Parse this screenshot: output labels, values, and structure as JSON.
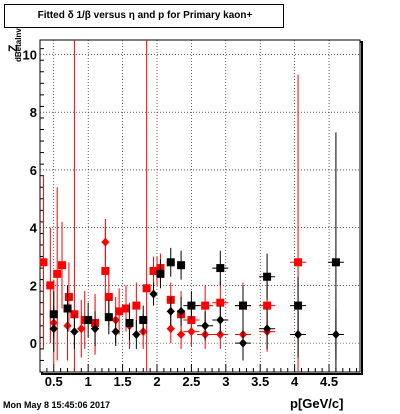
{
  "chart_data": {
    "type": "scatter",
    "title": "Fitted δ 1/β versus η and p for Primary kaon+",
    "xlabel": "p[GeV/c]",
    "ylabel_main": "Z",
    "ylabel_sub": "dBetaInv",
    "xlim": [
      0.3,
      4.95
    ],
    "ylim": [
      -1.0,
      10.5
    ],
    "xticks": [
      0.5,
      1,
      1.5,
      2,
      2.5,
      3,
      3.5,
      4,
      4.5
    ],
    "xtick_labels": [
      "0.5",
      "1",
      "1.5",
      "2",
      "2.5",
      "3",
      "3.5",
      "4",
      "4.5"
    ],
    "yticks": [
      0,
      2,
      4,
      6,
      8,
      10
    ],
    "ytick_labels": [
      "0",
      "2",
      "4",
      "6",
      "8",
      "10"
    ],
    "grid": true,
    "series": [
      {
        "marker": "square",
        "color": "#ff0000",
        "points": [
          {
            "x": 0.35,
            "y": 2.8,
            "err": 3.0
          },
          {
            "x": 0.45,
            "y": 2.0,
            "err": 2.0
          },
          {
            "x": 0.55,
            "y": 2.4,
            "err": 3.0
          },
          {
            "x": 0.62,
            "y": 2.7,
            "err": 1.5
          },
          {
            "x": 0.72,
            "y": 1.6,
            "err": 1.2
          },
          {
            "x": 0.8,
            "y": 1.0,
            "err": 10.0
          },
          {
            "x": 0.95,
            "y": 0.8,
            "err": 1.0
          },
          {
            "x": 1.1,
            "y": 0.7,
            "err": 1.0
          },
          {
            "x": 1.25,
            "y": 2.5,
            "err": 1.5
          },
          {
            "x": 1.3,
            "y": 1.6,
            "err": 1.0
          },
          {
            "x": 1.45,
            "y": 1.1,
            "err": 0.8
          },
          {
            "x": 1.55,
            "y": 1.2,
            "err": 0.8
          },
          {
            "x": 1.7,
            "y": 1.3,
            "err": 0.8
          },
          {
            "x": 1.85,
            "y": 1.9,
            "err": 10.0
          },
          {
            "x": 1.95,
            "y": 2.5,
            "err": 0.5
          },
          {
            "x": 2.05,
            "y": 2.6,
            "err": 0.5
          },
          {
            "x": 2.2,
            "y": 1.5,
            "err": 0.6
          },
          {
            "x": 2.35,
            "y": 1.0,
            "err": 0.8
          },
          {
            "x": 2.5,
            "y": 0.8,
            "err": 0.6
          },
          {
            "x": 2.7,
            "y": 1.3,
            "err": 0.7
          },
          {
            "x": 2.92,
            "y": 1.4,
            "err": 0.7
          },
          {
            "x": 3.25,
            "y": 1.3,
            "err": 0.8
          },
          {
            "x": 3.6,
            "y": 1.3,
            "err": 1.0
          },
          {
            "x": 4.05,
            "y": 2.8,
            "err": 6.5
          }
        ]
      },
      {
        "marker": "diamond",
        "color": "#ff0000",
        "points": [
          {
            "x": 0.5,
            "y": 0.7,
            "err": 1.5
          },
          {
            "x": 0.7,
            "y": 0.6,
            "err": 1.2
          },
          {
            "x": 0.9,
            "y": 0.5,
            "err": 1.0
          },
          {
            "x": 1.1,
            "y": 0.6,
            "err": 1.0
          },
          {
            "x": 1.25,
            "y": 3.5,
            "err": 0.8
          },
          {
            "x": 1.4,
            "y": 0.8,
            "err": 0.8
          },
          {
            "x": 1.6,
            "y": 0.6,
            "err": 0.8
          },
          {
            "x": 1.8,
            "y": 0.4,
            "err": 0.6
          },
          {
            "x": 2.0,
            "y": 2.5,
            "err": 0.5
          },
          {
            "x": 2.2,
            "y": 0.5,
            "err": 0.5
          },
          {
            "x": 2.35,
            "y": 0.3,
            "err": 0.5
          },
          {
            "x": 2.5,
            "y": 0.4,
            "err": 0.5
          },
          {
            "x": 2.7,
            "y": 0.3,
            "err": 0.5
          },
          {
            "x": 2.92,
            "y": 0.3,
            "err": 0.5
          },
          {
            "x": 3.25,
            "y": 0.3,
            "err": 0.6
          },
          {
            "x": 3.6,
            "y": 0.4,
            "err": 0.7
          },
          {
            "x": 4.05,
            "y": 0.3,
            "err": 0.8
          }
        ]
      },
      {
        "marker": "square",
        "color": "#000000",
        "points": [
          {
            "x": 0.5,
            "y": 1.0,
            "err": 0.8
          },
          {
            "x": 0.7,
            "y": 1.2,
            "err": 0.8
          },
          {
            "x": 1.0,
            "y": 0.8,
            "err": 0.6
          },
          {
            "x": 1.3,
            "y": 0.9,
            "err": 0.6
          },
          {
            "x": 1.6,
            "y": 0.7,
            "err": 0.6
          },
          {
            "x": 1.8,
            "y": 0.8,
            "err": 0.5
          },
          {
            "x": 2.05,
            "y": 2.4,
            "err": 0.5
          },
          {
            "x": 2.2,
            "y": 2.8,
            "err": 0.5
          },
          {
            "x": 2.35,
            "y": 2.7,
            "err": 0.5
          },
          {
            "x": 2.5,
            "y": 1.3,
            "err": 0.5
          },
          {
            "x": 2.92,
            "y": 2.6,
            "err": 0.6
          },
          {
            "x": 3.25,
            "y": 1.3,
            "err": 0.7
          },
          {
            "x": 3.6,
            "y": 2.3,
            "err": 0.8
          },
          {
            "x": 4.05,
            "y": 1.3,
            "err": 1.0
          },
          {
            "x": 4.6,
            "y": 2.8,
            "err": 4.5
          }
        ]
      },
      {
        "marker": "diamond",
        "color": "#000000",
        "points": [
          {
            "x": 0.5,
            "y": 0.5,
            "err": 0.8
          },
          {
            "x": 0.8,
            "y": 0.4,
            "err": 0.6
          },
          {
            "x": 1.1,
            "y": 0.5,
            "err": 0.6
          },
          {
            "x": 1.4,
            "y": 0.4,
            "err": 0.5
          },
          {
            "x": 1.7,
            "y": 0.3,
            "err": 0.5
          },
          {
            "x": 1.95,
            "y": 1.7,
            "err": 0.4
          },
          {
            "x": 2.2,
            "y": 1.1,
            "err": 0.5
          },
          {
            "x": 2.35,
            "y": 1.1,
            "err": 0.5
          },
          {
            "x": 2.7,
            "y": 0.6,
            "err": 0.5
          },
          {
            "x": 2.92,
            "y": 0.8,
            "err": 0.5
          },
          {
            "x": 3.25,
            "y": 0.0,
            "err": 0.6
          },
          {
            "x": 3.6,
            "y": 0.5,
            "err": 0.7
          },
          {
            "x": 4.05,
            "y": 0.3,
            "err": 0.8
          },
          {
            "x": 4.6,
            "y": 0.3,
            "err": 0.9
          }
        ]
      }
    ]
  },
  "footer": {
    "timestamp": "Mon May  8 15:45:06 2017"
  }
}
